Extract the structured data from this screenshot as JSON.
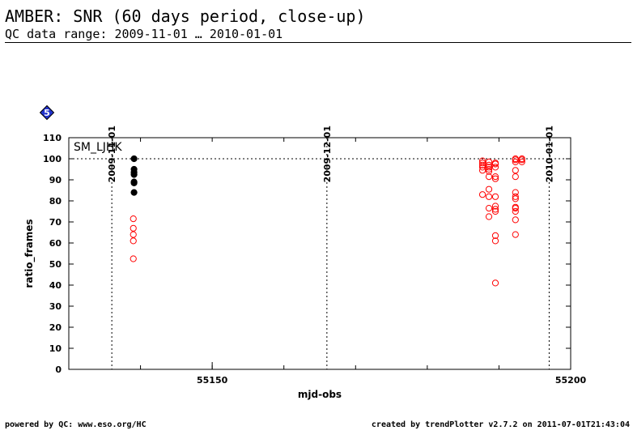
{
  "header": {
    "title": "AMBER: SNR (60 days period, close-up)",
    "subtitle": "QC data range: 2009-11-01 … 2010-01-01"
  },
  "footer": {
    "left": "powered by QC: www.eso.org/HC",
    "right": "created by trendPlotter v2.7.2 on 2011-07-01T21:43:04"
  },
  "badge": {
    "label": "5",
    "color": "#2233cc",
    "icon": "diamond-badge-icon"
  },
  "chart_data": {
    "type": "scatter",
    "xlabel": "mjd-obs",
    "ylabel": "ratio_frames",
    "xlim": [
      55130,
      55200
    ],
    "ylim": [
      0,
      110
    ],
    "xticks": [
      55150,
      55200
    ],
    "xticks_minor_step": 10,
    "yticks": [
      0,
      10,
      20,
      30,
      40,
      50,
      60,
      70,
      80,
      90,
      100,
      110
    ],
    "grid": false,
    "annotation": "SM_LJHK",
    "reference_line": {
      "y": 100,
      "style": "dotted"
    },
    "date_markers": [
      {
        "x": 55136,
        "label": "2009-11-01"
      },
      {
        "x": 55166,
        "label": "2009-12-01"
      },
      {
        "x": 55197,
        "label": "2010-01-01"
      }
    ],
    "series": [
      {
        "marker": "filled-circle",
        "color": "#000000",
        "points": [
          [
            55139.1,
            100
          ],
          [
            55139.1,
            95
          ],
          [
            55139.1,
            93.5
          ],
          [
            55139.1,
            92.5
          ],
          [
            55139.1,
            89
          ],
          [
            55139.1,
            88.5
          ],
          [
            55139.1,
            84
          ]
        ]
      },
      {
        "marker": "open-circle",
        "color": "#ff0000",
        "points": [
          [
            55139.0,
            71.5
          ],
          [
            55139.0,
            67
          ],
          [
            55139.0,
            64
          ],
          [
            55139.0,
            61
          ],
          [
            55139.0,
            52.5
          ],
          [
            55187.7,
            99
          ],
          [
            55187.7,
            98
          ],
          [
            55187.7,
            97
          ],
          [
            55187.7,
            96
          ],
          [
            55187.7,
            94.5
          ],
          [
            55187.7,
            83
          ],
          [
            55188.6,
            98.5
          ],
          [
            55188.6,
            97
          ],
          [
            55188.6,
            96
          ],
          [
            55188.6,
            95
          ],
          [
            55188.6,
            94
          ],
          [
            55188.6,
            91.5
          ],
          [
            55188.6,
            85.5
          ],
          [
            55188.6,
            82
          ],
          [
            55188.6,
            76.5
          ],
          [
            55188.6,
            72.5
          ],
          [
            55189.5,
            98
          ],
          [
            55189.5,
            97.5
          ],
          [
            55189.5,
            96
          ],
          [
            55189.5,
            91.5
          ],
          [
            55189.5,
            90.5
          ],
          [
            55189.5,
            82
          ],
          [
            55189.5,
            77.5
          ],
          [
            55189.5,
            76
          ],
          [
            55189.5,
            75
          ],
          [
            55189.5,
            63.5
          ],
          [
            55189.5,
            61
          ],
          [
            55189.5,
            41
          ],
          [
            55192.3,
            100
          ],
          [
            55192.3,
            99.5
          ],
          [
            55192.3,
            98.5
          ],
          [
            55192.3,
            94.5
          ],
          [
            55192.3,
            91.5
          ],
          [
            55192.3,
            84
          ],
          [
            55192.3,
            82
          ],
          [
            55192.3,
            81
          ],
          [
            55192.3,
            77
          ],
          [
            55192.3,
            76.5
          ],
          [
            55192.3,
            75
          ],
          [
            55192.3,
            71
          ],
          [
            55192.3,
            64
          ],
          [
            55193.2,
            100
          ],
          [
            55193.2,
            99.5
          ],
          [
            55193.2,
            98.5
          ]
        ]
      }
    ]
  }
}
